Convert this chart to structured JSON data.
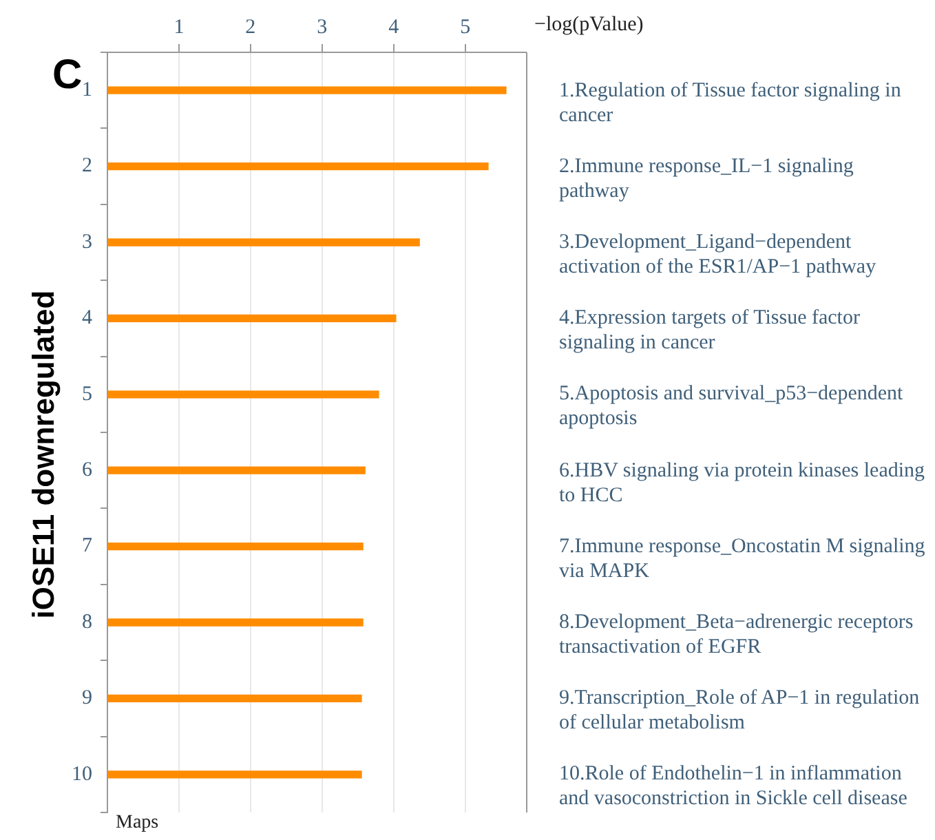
{
  "chart_data": {
    "type": "bar",
    "orientation": "horizontal",
    "title": "C",
    "xlabel": "−log(pValue)",
    "ylabel": "iOSE11 downregulated",
    "categories": [
      "1",
      "2",
      "3",
      "4",
      "5",
      "6",
      "7",
      "8",
      "9",
      "10"
    ],
    "values": [
      5.57,
      5.32,
      4.36,
      4.03,
      3.79,
      3.6,
      3.57,
      3.57,
      3.55,
      3.55
    ],
    "color": "#ff8c00",
    "xlim": [
      0,
      5.85
    ],
    "xticks": [
      1,
      2,
      3,
      4,
      5
    ],
    "grid": "x",
    "annotations": [
      "1.Regulation of Tissue factor signaling in cancer",
      "2.Immune response_IL−1 signaling pathway",
      "3.Development_Ligand−dependent activation of the ESR1/AP−1 pathway",
      "4.Expression targets of Tissue factor signaling in cancer",
      "5.Apoptosis and survival_p53−dependent apoptosis",
      "6.HBV signaling via protein kinases leading to HCC",
      "7.Immune response_Oncostatin M signaling via MAPK",
      "8.Development_Beta−adrenergic receptors transactivation of EGFR",
      "9.Transcription_Role of AP−1 in regulation of cellular metabolism",
      "10.Role of Endothelin−1 in inflammation and vasoconstriction in Sickle cell disease",
      "Maps"
    ]
  }
}
